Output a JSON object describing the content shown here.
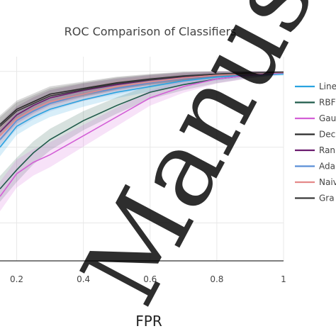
{
  "chart_data": {
    "type": "line",
    "title": "ROC Comparison of Classifiers",
    "xlabel": "FPR",
    "ylabel": "",
    "xlim": [
      0.15,
      1.0
    ],
    "ylim": [
      0.5,
      1.02
    ],
    "x_ticks": [
      "0.2",
      "0.4",
      "0.6",
      "0.8",
      "1"
    ],
    "x_tick_values": [
      0.2,
      0.4,
      0.6,
      0.8,
      1.0
    ],
    "grid": true,
    "legend_position": "right",
    "series": [
      {
        "name": "Line",
        "color": "#29a3e0",
        "x": [
          0.15,
          0.2,
          0.25,
          0.3,
          0.4,
          0.5,
          0.6,
          0.7,
          0.8,
          0.9,
          1.0
        ],
        "y": [
          0.8,
          0.855,
          0.88,
          0.9,
          0.925,
          0.945,
          0.96,
          0.975,
          0.985,
          0.99,
          0.993
        ]
      },
      {
        "name": "RBF",
        "color": "#1f5a4a",
        "x": [
          0.15,
          0.2,
          0.25,
          0.3,
          0.4,
          0.5,
          0.6,
          0.7,
          0.8,
          0.9,
          1.0
        ],
        "y": [
          0.69,
          0.74,
          0.785,
          0.82,
          0.87,
          0.91,
          0.945,
          0.965,
          0.98,
          0.99,
          0.997
        ]
      },
      {
        "name": "Gau",
        "color": "#d35fd6",
        "x": [
          0.15,
          0.2,
          0.25,
          0.3,
          0.4,
          0.5,
          0.6,
          0.7,
          0.8,
          0.9,
          1.0
        ],
        "y": [
          0.67,
          0.73,
          0.76,
          0.78,
          0.83,
          0.88,
          0.93,
          0.96,
          0.98,
          0.99,
          0.996
        ]
      },
      {
        "name": "Dec",
        "color": "#2b2b2b",
        "x": [
          0.15,
          0.2,
          0.25,
          0.3,
          0.4,
          0.5,
          0.6,
          0.7,
          0.8,
          0.9,
          1.0
        ],
        "y": [
          0.86,
          0.9,
          0.92,
          0.94,
          0.955,
          0.97,
          0.98,
          0.988,
          0.993,
          0.996,
          0.998
        ]
      },
      {
        "name": "Ran",
        "color": "#6a1b6e",
        "x": [
          0.15,
          0.2,
          0.25,
          0.3,
          0.4,
          0.5,
          0.6,
          0.7,
          0.8,
          0.9,
          1.0
        ],
        "y": [
          0.84,
          0.885,
          0.91,
          0.93,
          0.95,
          0.965,
          0.977,
          0.986,
          0.992,
          0.996,
          0.998
        ]
      },
      {
        "name": "Ada",
        "color": "#5b8fd6",
        "x": [
          0.15,
          0.2,
          0.25,
          0.3,
          0.4,
          0.5,
          0.6,
          0.7,
          0.8,
          0.9,
          1.0
        ],
        "y": [
          0.82,
          0.87,
          0.895,
          0.915,
          0.94,
          0.955,
          0.97,
          0.982,
          0.99,
          0.995,
          0.997
        ]
      },
      {
        "name": "Naiv",
        "color": "#e58a8a",
        "x": [
          0.15,
          0.2,
          0.25,
          0.3,
          0.4,
          0.5,
          0.6,
          0.7,
          0.8,
          0.9,
          1.0
        ],
        "y": [
          0.83,
          0.875,
          0.9,
          0.92,
          0.94,
          0.96,
          0.972,
          0.983,
          0.99,
          0.995,
          0.997
        ]
      },
      {
        "name": "Gra",
        "color": "#3a3a3a",
        "x": [
          0.15,
          0.2,
          0.25,
          0.3,
          0.4,
          0.5,
          0.6,
          0.7,
          0.8,
          0.9,
          1.0
        ],
        "y": [
          0.855,
          0.895,
          0.915,
          0.935,
          0.952,
          0.968,
          0.978,
          0.987,
          0.993,
          0.996,
          0.998
        ]
      }
    ]
  },
  "watermark": {
    "text": "Manuscri"
  }
}
